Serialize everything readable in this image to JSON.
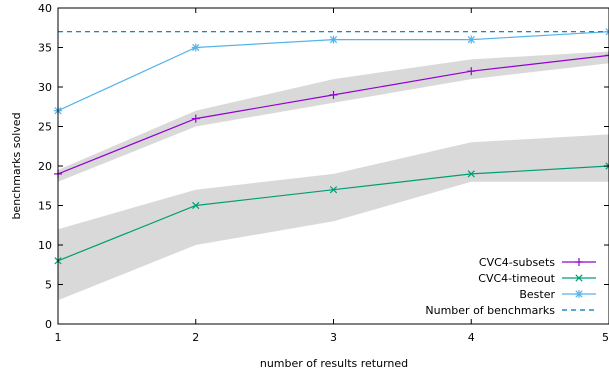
{
  "chart_data": {
    "type": "line",
    "title": "",
    "xlabel": "number of results returned",
    "ylabel": "benchmarks solved",
    "x": [
      1,
      2,
      3,
      4,
      5
    ],
    "xlim": [
      1,
      5
    ],
    "ylim": [
      0,
      40
    ],
    "xticks": [
      "1",
      "2",
      "3",
      "4",
      "5"
    ],
    "yticks": [
      "0",
      "5",
      "10",
      "15",
      "20",
      "25",
      "30",
      "35",
      "40"
    ],
    "grid": false,
    "legend_position": "bottom-right",
    "series": [
      {
        "name": "CVC4-subsets",
        "marker": "plus",
        "color": "#9400d3",
        "values": [
          19,
          26,
          29,
          32,
          34
        ],
        "band_low": [
          18,
          25,
          28,
          31,
          33
        ],
        "band_high": [
          19.5,
          27,
          31,
          33.5,
          34.5
        ]
      },
      {
        "name": "CVC4-timeout",
        "marker": "x",
        "color": "#009e73",
        "values": [
          8,
          15,
          17,
          19,
          20
        ],
        "band_low": [
          3,
          10,
          13,
          18,
          18
        ],
        "band_high": [
          12,
          17,
          19,
          23,
          24
        ]
      },
      {
        "name": "Bester",
        "marker": "star",
        "color": "#56b4e9",
        "values": [
          27,
          35,
          36,
          36,
          37
        ]
      },
      {
        "name": "Number of benchmarks",
        "style": "dashed",
        "color": "#0072b2",
        "values": [
          37,
          37,
          37,
          37,
          37
        ]
      }
    ],
    "band_color": "#d9d9d9"
  }
}
